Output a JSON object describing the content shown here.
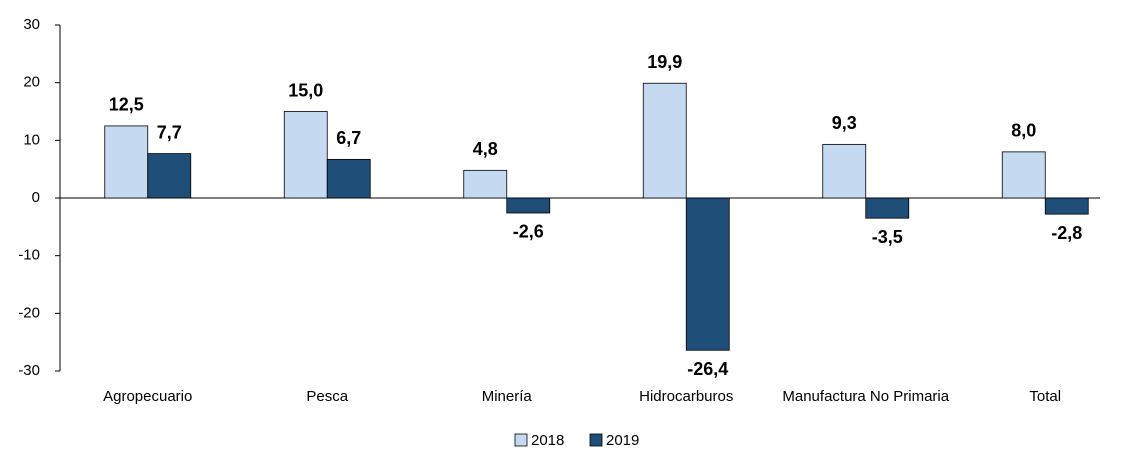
{
  "chart_data": {
    "type": "bar",
    "categories": [
      "Agropecuario",
      "Pesca",
      "Minería",
      "Hidrocarburos",
      "Manufactura No Primaria",
      "Total"
    ],
    "series": [
      {
        "name": "2018",
        "color": "#c5d9f1",
        "values": [
          12.5,
          15.0,
          4.8,
          19.9,
          9.3,
          8.0
        ],
        "value_labels": [
          "12,5",
          "15,0",
          "4,8",
          "19,9",
          "9,3",
          "8,0"
        ]
      },
      {
        "name": "2019",
        "color": "#1f4e79",
        "values": [
          7.7,
          6.7,
          -2.6,
          -26.4,
          -3.5,
          -2.8
        ],
        "value_labels": [
          "7,7",
          "6,7",
          "-2,6",
          "-26,4",
          "-3,5",
          "-2,8"
        ]
      }
    ],
    "ylim": [
      -30,
      30
    ],
    "yticks": [
      30,
      20,
      10,
      0,
      -10,
      -20,
      -30
    ],
    "legend": "bottom"
  }
}
